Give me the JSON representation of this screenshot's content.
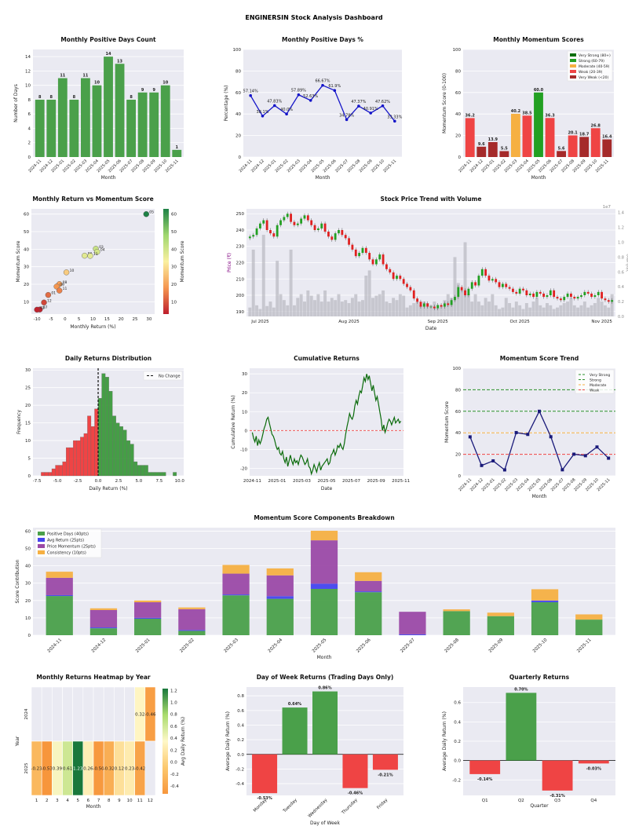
{
  "dashboard_title": "ENGINERSIN Stock Analysis Dashboard",
  "colors": {
    "panel_bg": "#eaeaf2",
    "green": "#4aa04a",
    "red": "#ef4444",
    "orange": "#f6b042",
    "darkred": "#a52a2a",
    "navy": "#1a1a7a",
    "purple": "#9b4aa6",
    "blue": "#4444ee"
  },
  "chart_data": [
    {
      "id": "positive_days_count",
      "type": "bar",
      "title": "Monthly Positive Days Count",
      "xlabel": "Month",
      "ylabel": "Number of Days",
      "ylim": [
        0,
        15
      ],
      "yticks": [
        0,
        2,
        4,
        6,
        8,
        10,
        12,
        14
      ],
      "categories": [
        "2024-11",
        "2024-12",
        "2025-01",
        "2025-02",
        "2025-03",
        "2025-04",
        "2025-05",
        "2025-06",
        "2025-07",
        "2025-08",
        "2025-09",
        "2025-10",
        "2025-11"
      ],
      "values": [
        8,
        8,
        11,
        8,
        11,
        10,
        14,
        13,
        8,
        9,
        9,
        10,
        1
      ],
      "labels": [
        "8",
        "8",
        "11",
        "8",
        "11",
        "10",
        "14",
        "13",
        "8",
        "9",
        "9",
        "10",
        "1"
      ]
    },
    {
      "id": "positive_days_pct",
      "type": "line",
      "title": "Monthly Positive Days %",
      "xlabel": "Month",
      "ylabel": "Percentage (%)",
      "ylim": [
        0,
        100
      ],
      "yticks": [
        0,
        20,
        40,
        60,
        80,
        100
      ],
      "categories": [
        "2024-11",
        "2024-12",
        "2025-01",
        "2025-02",
        "2025-03",
        "2025-04",
        "2025-05",
        "2025-06",
        "2025-07",
        "2025-08",
        "2025-09",
        "2025-10",
        "2025-11"
      ],
      "values": [
        57.14,
        38.1,
        47.83,
        40.0,
        57.89,
        52.63,
        66.67,
        61.9,
        34.78,
        47.37,
        40.91,
        47.62,
        33.33
      ],
      "labels": [
        "57.14%",
        "38.1%",
        "47.83%",
        "40.0%",
        "57.89%",
        "52.63%",
        "66.67%",
        "61.9%",
        "34.78%",
        "47.37%",
        "40.91%",
        "47.62%",
        "33.33%"
      ]
    },
    {
      "id": "momentum_scores",
      "type": "bar",
      "title": "Monthly Momentum Scores",
      "xlabel": "Month",
      "ylabel": "Momentum Score (0-100)",
      "ylim": [
        0,
        100
      ],
      "yticks": [
        0,
        20,
        40,
        60,
        80,
        100
      ],
      "categories": [
        "2024-11",
        "2024-12",
        "2025-01",
        "2025-02",
        "2025-03",
        "2025-04",
        "2025-05",
        "2025-06",
        "2025-07",
        "2025-08",
        "2025-09",
        "2025-10",
        "2025-11"
      ],
      "values": [
        36.2,
        9.6,
        13.9,
        5.5,
        40.2,
        38.5,
        60.0,
        36.3,
        5.6,
        20.1,
        18.7,
        26.8,
        16.4
      ],
      "labels": [
        "36.2",
        "9.6",
        "13.9",
        "5.5",
        "40.2",
        "38.5",
        "60.0",
        "36.3",
        "5.6",
        "20.1",
        "18.7",
        "26.8",
        "16.4"
      ],
      "bar_colors": [
        "#ef4444",
        "#a52a2a",
        "#a52a2a",
        "#a52a2a",
        "#f6b042",
        "#ef4444",
        "#22a022",
        "#ef4444",
        "#a52a2a",
        "#ef4444",
        "#a52a2a",
        "#ef4444",
        "#a52a2a"
      ],
      "legend": [
        {
          "label": "Very Strong (80+)",
          "color": "#0a6e0a"
        },
        {
          "label": "Strong (60-79)",
          "color": "#22a022"
        },
        {
          "label": "Moderate (40-59)",
          "color": "#f6b042"
        },
        {
          "label": "Weak (20-39)",
          "color": "#ef4444"
        },
        {
          "label": "Very Weak (<20)",
          "color": "#a52a2a"
        }
      ]
    },
    {
      "id": "return_vs_momentum",
      "type": "scatter",
      "title": "Monthly Return vs Momentum Score",
      "xlabel": "Monthly Return (%)",
      "ylabel": "Momentum Score",
      "xlim": [
        -12,
        32
      ],
      "ylim": [
        3,
        63
      ],
      "xticks": [
        -10,
        -5,
        0,
        5,
        10,
        15,
        20,
        25,
        30
      ],
      "yticks": [
        10,
        20,
        30,
        40,
        50,
        60
      ],
      "colorbar_label": "Momentum Score",
      "colorbar_ticks": [
        10,
        20,
        30,
        40,
        50,
        60
      ],
      "points": [
        {
          "label": "05",
          "x": 29,
          "y": 60
        },
        {
          "label": "03",
          "x": 11,
          "y": 40.2
        },
        {
          "label": "04",
          "x": 11.5,
          "y": 38.5
        },
        {
          "label": "06",
          "x": 7,
          "y": 36.3
        },
        {
          "label": "11",
          "x": 9,
          "y": 36.2
        },
        {
          "label": "10",
          "x": 0.5,
          "y": 26.8
        },
        {
          "label": "08",
          "x": -2,
          "y": 20.1
        },
        {
          "label": "09",
          "x": -3,
          "y": 18.7
        },
        {
          "label": "11",
          "x": -2,
          "y": 16.4
        },
        {
          "label": "01",
          "x": -6,
          "y": 13.9
        },
        {
          "label": "12",
          "x": -7.5,
          "y": 9.6
        },
        {
          "label": "07",
          "x": -9,
          "y": 5.6
        },
        {
          "label": "02",
          "x": -10,
          "y": 5.5
        }
      ]
    },
    {
      "id": "price_trend",
      "type": "candlestick",
      "title": "Stock Price Trend with Volume",
      "xlabel": "Date",
      "ylabel": "Price (₹)",
      "y2label": "Volume",
      "y2_scale_label": "1e7",
      "ylim": [
        187,
        253
      ],
      "yticks": [
        190,
        200,
        210,
        220,
        230,
        240,
        250
      ],
      "y2lim": [
        0,
        1.45
      ],
      "y2ticks": [
        "0.0",
        "0.2",
        "0.4",
        "0.6",
        "0.8",
        "1.0",
        "1.2",
        "1.4"
      ],
      "xticks": [
        "Jul 2025",
        "Aug 2025",
        "Sep 2025",
        "Oct 2025",
        "Nov 2025"
      ],
      "closes": [
        236,
        237,
        241,
        244,
        246,
        240,
        238,
        236,
        243,
        246,
        248,
        250,
        245,
        243,
        244,
        247,
        249,
        246,
        243,
        240,
        241,
        244,
        239,
        236,
        234,
        238,
        240,
        237,
        235,
        231,
        228,
        224,
        226,
        229,
        226,
        222,
        219,
        222,
        225,
        219,
        216,
        214,
        210,
        212,
        210,
        207,
        205,
        203,
        198,
        196,
        193,
        195,
        193,
        193,
        192,
        194,
        193,
        195,
        194,
        197,
        199,
        205,
        203,
        200,
        204,
        208,
        206,
        212,
        216,
        212,
        209,
        210,
        208,
        205,
        207,
        205,
        204,
        202,
        201,
        204,
        203,
        200,
        201,
        199,
        202,
        201,
        199,
        200,
        203,
        199,
        198,
        197,
        199,
        201,
        199,
        198,
        199,
        200,
        202,
        201,
        199,
        200,
        202,
        198,
        197,
        196,
        197
      ],
      "volumes": [
        0.12,
        0.9,
        0.15,
        0.1,
        1.1,
        0.14,
        0.2,
        0.12,
        0.75,
        0.3,
        0.22,
        0.15,
        0.9,
        0.15,
        0.25,
        0.3,
        0.2,
        0.35,
        0.28,
        0.22,
        0.3,
        0.2,
        0.35,
        0.2,
        0.25,
        0.22,
        0.3,
        0.2,
        0.22,
        0.18,
        0.25,
        0.3,
        0.2,
        0.22,
        0.55,
        0.62,
        0.25,
        0.28,
        0.3,
        0.35,
        0.2,
        0.18,
        0.25,
        0.22,
        0.3,
        0.28,
        0.12,
        0.15,
        0.18,
        0.2,
        0.15,
        0.2,
        0.18,
        0.15,
        0.2,
        0.12,
        0.15,
        0.22,
        0.3,
        0.25,
        0.8,
        0.45,
        0.35,
        1.0,
        0.3,
        0.2,
        0.3,
        0.2,
        0.15,
        0.25,
        0.2,
        0.3,
        0.15,
        0.1,
        0.12,
        0.25,
        0.18,
        0.12,
        0.2,
        0.15,
        0.1,
        0.18,
        0.12,
        0.2,
        0.25,
        0.15,
        0.12,
        0.18,
        0.15,
        0.1,
        0.12,
        0.15,
        0.18,
        0.2,
        0.25,
        0.15,
        0.12,
        0.15,
        0.2,
        0.12,
        0.15,
        0.18,
        0.25,
        0.2,
        0.15,
        0.12,
        0.3
      ]
    },
    {
      "id": "daily_returns_hist",
      "type": "histogram",
      "title": "Daily Returns Distribution",
      "xlabel": "Daily Return (%)",
      "ylabel": "Frequency",
      "xlim": [
        -8,
        10.5
      ],
      "ylim": [
        0,
        30.5
      ],
      "xticks": [
        -7.5,
        -5.0,
        -2.5,
        0.0,
        2.5,
        5.0,
        7.5,
        10.0
      ],
      "yticks": [
        0,
        5,
        10,
        15,
        20,
        25,
        30
      ],
      "bin_start": -7.0,
      "bin_width": 0.4375,
      "counts": [
        1,
        1,
        1,
        2,
        3,
        3,
        4,
        8,
        8,
        10,
        10,
        11,
        12,
        17,
        14,
        19,
        22,
        29,
        28,
        24,
        17,
        15,
        14,
        13,
        10,
        9,
        4,
        3,
        3,
        3,
        1,
        1,
        1,
        1,
        1,
        0,
        0,
        1
      ],
      "legend": "No Change"
    },
    {
      "id": "cumulative_returns",
      "type": "line",
      "title": "Cumulative Returns",
      "xlabel": "Date",
      "ylabel": "Cumulative Return (%)",
      "ylim": [
        -24,
        33
      ],
      "yticks": [
        -20,
        -10,
        0,
        10,
        20,
        30
      ],
      "xticks": [
        "2024-11",
        "2025-01",
        "2025-03",
        "2025-05",
        "2025-07",
        "2025-09",
        "2025-11"
      ],
      "values": [
        -1,
        -4,
        -6,
        -3,
        -8,
        -5,
        -7,
        -5,
        -2,
        1,
        3,
        6,
        7,
        4,
        1,
        -2,
        -3,
        -5,
        -8,
        -10,
        -9,
        -12,
        -13,
        -11,
        -15,
        -17,
        -14,
        -19,
        -16,
        -13,
        -16,
        -18,
        -15,
        -17,
        -16,
        -18,
        -15,
        -13,
        -14,
        -16,
        -18,
        -17,
        -15,
        -19,
        -20,
        -23,
        -21,
        -18,
        -20,
        -22,
        -19,
        -17,
        -21,
        -19,
        -18,
        -17,
        -16,
        -15,
        -18,
        -17,
        -13,
        -12,
        -10,
        -13,
        -11,
        -8,
        -9,
        -7,
        -9,
        -10,
        -7,
        -2,
        2,
        5,
        9,
        7,
        6,
        8,
        13,
        16,
        14,
        18,
        21,
        20,
        24,
        28,
        26,
        30,
        27,
        29,
        25,
        21,
        24,
        20,
        16,
        18,
        14,
        10,
        6,
        0,
        3,
        -1,
        1,
        4,
        6,
        5,
        3,
        5,
        7,
        4,
        5,
        6,
        4,
        5
      ],
      "baseline": 0
    },
    {
      "id": "momentum_trend",
      "type": "line",
      "title": "Momentum Score Trend",
      "xlabel": "Month",
      "ylabel": "Momentum Score",
      "ylim": [
        0,
        100
      ],
      "yticks": [
        0,
        20,
        40,
        60,
        80,
        100
      ],
      "categories": [
        "2024-11",
        "2024-12",
        "2025-01",
        "2025-02",
        "2025-03",
        "2025-04",
        "2025-05",
        "2025-06",
        "2025-07",
        "2025-08",
        "2025-09",
        "2025-10",
        "2025-11"
      ],
      "values": [
        36.2,
        9.6,
        13.9,
        5.5,
        40.2,
        38.5,
        60.0,
        36.3,
        5.6,
        20.1,
        18.7,
        26.8,
        16.4
      ],
      "thresholds": [
        {
          "label": "Very Strong",
          "value": 80,
          "color": "#2a8f2a"
        },
        {
          "label": "Strong",
          "value": 60,
          "color": "#2a8f2a"
        },
        {
          "label": "Moderate",
          "value": 40,
          "color": "#f6b042"
        },
        {
          "label": "Weak",
          "value": 20,
          "color": "#ef4444"
        }
      ]
    },
    {
      "id": "components_breakdown",
      "type": "stacked_bar",
      "title": "Momentum Score Components Breakdown",
      "xlabel": "Month",
      "ylabel": "Score Contribution",
      "ylim": [
        0,
        62
      ],
      "yticks": [
        0,
        10,
        20,
        30,
        40,
        50,
        60
      ],
      "categories": [
        "2024-11",
        "2024-12",
        "2025-01",
        "2025-02",
        "2025-03",
        "2025-04",
        "2025-05",
        "2025-06",
        "2025-07",
        "2025-08",
        "2025-09",
        "2025-10",
        "2025-11"
      ],
      "series": [
        {
          "name": "Positive Days (40pts)",
          "color": "#4aa04a",
          "values": [
            22.6,
            4,
            9.5,
            2.5,
            23,
            21,
            26.7,
            24.8,
            0,
            13.9,
            11,
            19,
            9
          ]
        },
        {
          "name": "Avg Return (25pts)",
          "color": "#4444ee",
          "values": [
            0.5,
            0.5,
            0.5,
            0.5,
            0.5,
            1.5,
            3,
            0.5,
            0.5,
            0,
            0,
            1,
            0
          ]
        },
        {
          "name": "Price Momentum (25pts)",
          "color": "#9b4aa6",
          "values": [
            10,
            10,
            9,
            12,
            12,
            12,
            25,
            6,
            13,
            0,
            0,
            0,
            0
          ]
        },
        {
          "name": "Consistency (10pts)",
          "color": "#f6b042",
          "values": [
            3.5,
            1,
            1,
            1,
            5,
            4,
            5.5,
            5,
            0,
            1,
            2,
            6.5,
            3
          ]
        }
      ],
      "orange_overlay_note": "Consistency stacks on top"
    },
    {
      "id": "returns_heatmap",
      "type": "heatmap",
      "title": "Monthly Returns Heatmap by Year",
      "xlabel": "Month",
      "ylabel": "Year",
      "rows": [
        "2024",
        "2025"
      ],
      "cols": [
        "1",
        "2",
        "3",
        "4",
        "5",
        "6",
        "7",
        "8",
        "9",
        "10",
        "11",
        "12"
      ],
      "values": [
        [
          null,
          null,
          null,
          null,
          null,
          null,
          null,
          null,
          null,
          null,
          0.32,
          -0.46
        ],
        [
          -0.23,
          -0.53,
          0.39,
          0.61,
          1.23,
          0.26,
          -0.5,
          -0.32,
          0.12,
          0.23,
          -0.42,
          null
        ]
      ],
      "labels": [
        [
          "",
          "",
          "",
          "",
          "",
          "",
          "",
          "",
          "",
          "",
          "0.32",
          "-0.46"
        ],
        [
          "-0.23",
          "-0.53",
          "0.39",
          "0.61",
          "1.23",
          "0.26",
          "-0.50",
          "-0.32",
          "0.12",
          "0.23",
          "-0.42",
          ""
        ]
      ],
      "colorbar_label": "Avg Daily Return (%)",
      "colorbar_ticks": [
        "1.2",
        "1.0",
        "0.8",
        "0.6",
        "0.4",
        "0.2",
        "0.0",
        "-0.2",
        "-0.4"
      ],
      "vmin": -0.53,
      "vmax": 1.23
    },
    {
      "id": "day_of_week_returns",
      "type": "bar",
      "title": "Day of Week Returns (Trading Days Only)",
      "xlabel": "Day of Week",
      "ylabel": "Average Daily Return (%)",
      "ylim": [
        -0.56,
        0.92
      ],
      "yticks": [
        -0.4,
        -0.2,
        0.0,
        0.2,
        0.4,
        0.6,
        0.8
      ],
      "categories": [
        "Monday",
        "Tuesday",
        "Wednesday",
        "Thursday",
        "Friday"
      ],
      "values": [
        -0.53,
        0.64,
        0.86,
        -0.46,
        -0.21
      ],
      "labels": [
        "-0.53%",
        "0.64%",
        "0.86%",
        "-0.46%",
        "-0.21%"
      ]
    },
    {
      "id": "quarterly_returns",
      "type": "bar",
      "title": "Quarterly Returns",
      "xlabel": "Quarter",
      "ylabel": "Average Daily Return (%)",
      "ylim": [
        -0.36,
        0.76
      ],
      "yticks": [
        -0.2,
        0.0,
        0.2,
        0.4,
        0.6
      ],
      "categories": [
        "Q1",
        "Q2",
        "Q3",
        "Q4"
      ],
      "values": [
        -0.14,
        0.7,
        -0.31,
        -0.03
      ],
      "labels": [
        "-0.14%",
        "0.70%",
        "-0.31%",
        "-0.03%"
      ]
    }
  ]
}
